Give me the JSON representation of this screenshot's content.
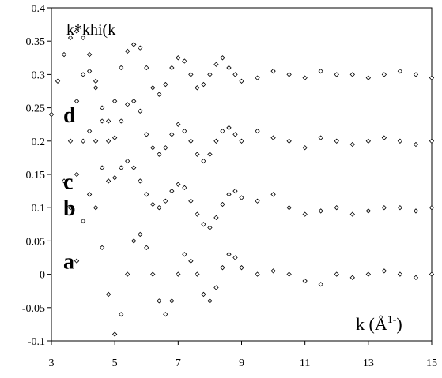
{
  "chart_data": {
    "type": "scatter",
    "title": "",
    "ylabel": "k*khi(k",
    "xlabel": "k (Å",
    "xlabel_sup": "1-",
    "xlabel_close": ")",
    "xlim": [
      3,
      15
    ],
    "ylim": [
      -0.1,
      0.4
    ],
    "x_ticks": [
      "3",
      "5",
      "7",
      "9",
      "11",
      "13",
      "15"
    ],
    "y_ticks": [
      "0.4",
      "0.35",
      "0.3",
      "0.25",
      "0.2",
      "0.15",
      "0.1",
      "0.05",
      "0",
      "-0.05",
      "-0.1"
    ],
    "grid": false,
    "marker": "open-diamond",
    "series": [
      {
        "label": "d",
        "x": [
          3.0,
          3.2,
          3.4,
          3.6,
          3.8,
          4.0,
          4.2,
          4.4,
          4.6,
          4.8,
          5.0,
          5.2,
          5.4,
          5.6,
          5.8,
          6.0,
          6.2,
          6.4,
          6.6,
          6.8,
          7.0,
          7.2,
          7.4,
          7.6,
          7.8,
          8.0,
          8.2,
          8.4,
          8.6,
          8.8,
          9.0,
          9.5,
          10.0,
          10.5,
          11.0,
          11.5,
          12.0,
          12.5,
          13.0,
          13.5,
          14.0,
          14.5,
          15.0
        ],
        "y": [
          0.24,
          0.29,
          0.33,
          0.355,
          0.365,
          0.355,
          0.33,
          0.29,
          0.25,
          0.23,
          0.26,
          0.31,
          0.335,
          0.345,
          0.34,
          0.31,
          0.28,
          0.27,
          0.285,
          0.31,
          0.325,
          0.32,
          0.3,
          0.28,
          0.285,
          0.3,
          0.315,
          0.325,
          0.31,
          0.3,
          0.29,
          0.295,
          0.305,
          0.3,
          0.295,
          0.305,
          0.3,
          0.3,
          0.295,
          0.3,
          0.305,
          0.3,
          0.295
        ]
      },
      {
        "label": "c",
        "x": [
          3.4,
          3.6,
          3.8,
          4.0,
          4.2,
          4.4,
          4.6,
          4.8,
          5.0,
          5.2,
          5.4,
          5.6,
          5.8,
          6.0,
          6.2,
          6.4,
          6.6,
          6.8,
          7.0,
          7.2,
          7.4,
          7.6,
          7.8,
          8.0,
          8.2,
          8.4,
          8.6,
          8.8,
          9.0,
          9.5,
          10.0,
          10.5,
          11.0,
          11.5,
          12.0,
          12.5,
          13.0,
          13.5,
          14.0,
          14.5,
          15.0
        ],
        "y": [
          0.14,
          0.2,
          0.26,
          0.3,
          0.305,
          0.28,
          0.23,
          0.2,
          0.205,
          0.23,
          0.255,
          0.26,
          0.245,
          0.21,
          0.19,
          0.18,
          0.19,
          0.21,
          0.225,
          0.215,
          0.2,
          0.18,
          0.17,
          0.18,
          0.2,
          0.215,
          0.22,
          0.21,
          0.2,
          0.215,
          0.205,
          0.2,
          0.19,
          0.205,
          0.2,
          0.195,
          0.2,
          0.205,
          0.2,
          0.195,
          0.2
        ]
      },
      {
        "label": "b",
        "x": [
          3.6,
          3.8,
          4.0,
          4.2,
          4.4,
          4.6,
          4.8,
          5.0,
          5.2,
          5.4,
          5.6,
          5.8,
          6.0,
          6.2,
          6.4,
          6.6,
          6.8,
          7.0,
          7.2,
          7.4,
          7.6,
          7.8,
          8.0,
          8.2,
          8.4,
          8.6,
          8.8,
          9.0,
          9.5,
          10.0,
          10.5,
          11.0,
          11.5,
          12.0,
          12.5,
          13.0,
          13.5,
          14.0,
          14.5,
          15.0
        ],
        "y": [
          0.1,
          0.15,
          0.2,
          0.215,
          0.2,
          0.16,
          0.14,
          0.145,
          0.16,
          0.17,
          0.16,
          0.14,
          0.12,
          0.105,
          0.1,
          0.11,
          0.125,
          0.135,
          0.13,
          0.11,
          0.09,
          0.075,
          0.07,
          0.085,
          0.105,
          0.12,
          0.125,
          0.115,
          0.11,
          0.12,
          0.1,
          0.09,
          0.095,
          0.1,
          0.09,
          0.095,
          0.1,
          0.1,
          0.095,
          0.1
        ]
      },
      {
        "label": "a",
        "x": [
          3.8,
          4.0,
          4.2,
          4.4,
          4.6,
          4.8,
          5.0,
          5.2,
          5.4,
          5.6,
          5.8,
          6.0,
          6.2,
          6.4,
          6.6,
          6.8,
          7.0,
          7.2,
          7.4,
          7.6,
          7.8,
          8.0,
          8.2,
          8.4,
          8.6,
          8.8,
          9.0,
          9.5,
          10.0,
          10.5,
          11.0,
          11.5,
          12.0,
          12.5,
          13.0,
          13.5,
          14.0,
          14.5,
          15.0
        ],
        "y": [
          0.02,
          0.08,
          0.12,
          0.1,
          0.04,
          -0.03,
          -0.09,
          -0.06,
          0.0,
          0.05,
          0.06,
          0.04,
          0.0,
          -0.04,
          -0.06,
          -0.04,
          0.0,
          0.03,
          0.02,
          0.0,
          -0.03,
          -0.04,
          -0.02,
          0.01,
          0.03,
          0.025,
          0.01,
          0.0,
          0.005,
          0.0,
          -0.01,
          -0.015,
          0.0,
          -0.005,
          0.0,
          0.005,
          0.0,
          -0.005,
          0.0
        ]
      }
    ]
  }
}
